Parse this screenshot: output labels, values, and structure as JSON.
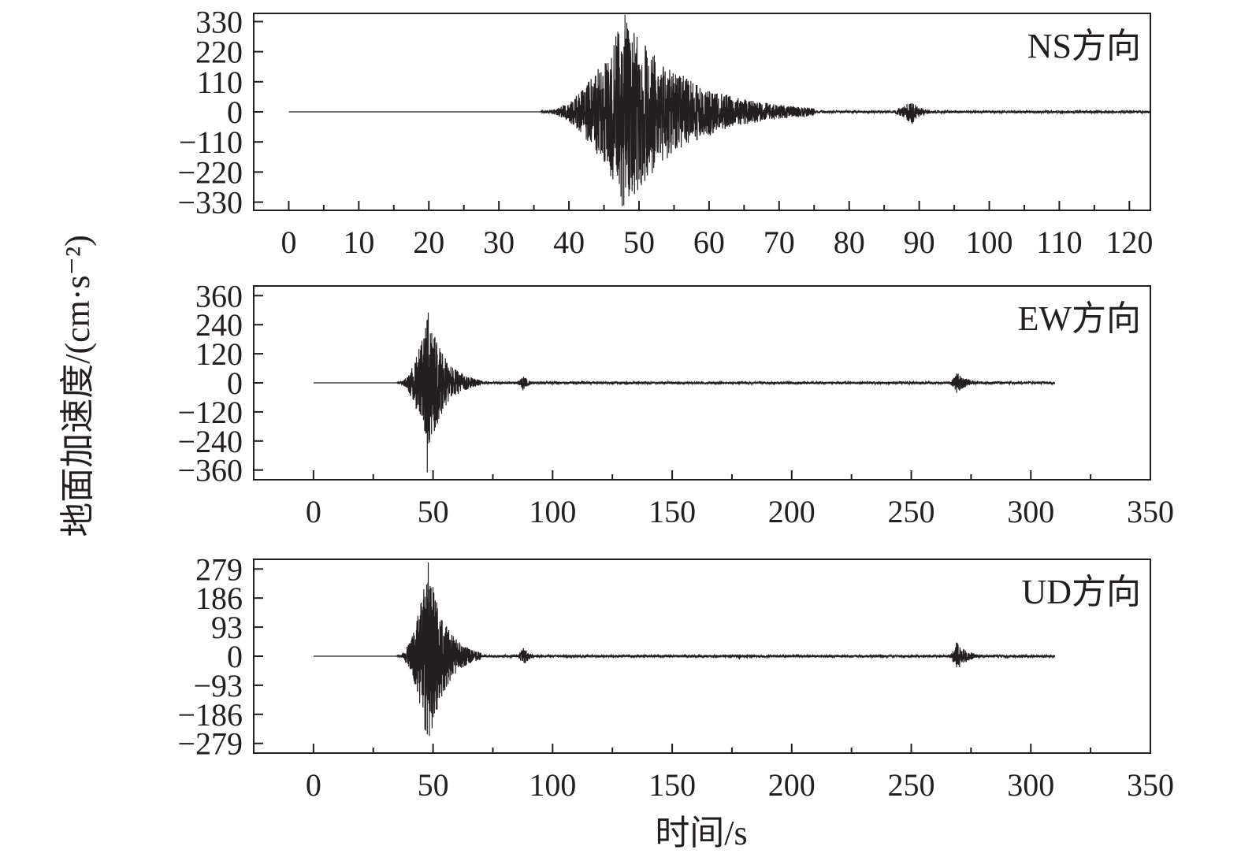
{
  "chart_data": [
    {
      "type": "line",
      "title": "NS方向",
      "xlabel": "",
      "ylabel": "地面加速度/(cm·s⁻²)",
      "xlim": [
        -5,
        123
      ],
      "ylim": [
        -360,
        360
      ],
      "x_ticks": [
        0,
        10,
        20,
        30,
        40,
        50,
        60,
        70,
        80,
        90,
        100,
        110,
        120
      ],
      "x_tick_labels": [
        "0",
        "10",
        "20",
        "30",
        "40",
        "50",
        "60",
        "70",
        "80",
        "90",
        "100",
        "110",
        "120"
      ],
      "y_ticks": [
        330,
        220,
        110,
        0,
        -110,
        -220,
        -330
      ],
      "y_tick_labels": [
        "330",
        "220",
        "110",
        "0",
        "−110",
        "−220",
        "−330"
      ],
      "series": [
        {
          "values_description": "",
          "x_start": 0,
          "x_end": 123,
          "events": [
            {
              "t_start": 36,
              "t_peak": 48,
              "t_end": 75,
              "peak": 355
            },
            {
              "t_start": 85,
              "t_peak": 89,
              "t_end": 93,
              "peak": 45
            }
          ],
          "peak_min": -345
        }
      ]
    },
    {
      "type": "line",
      "title": "EW方向",
      "xlabel": "",
      "ylabel": "地面加速度/(cm·s⁻²)",
      "xlim": [
        -25,
        350
      ],
      "ylim": [
        -400,
        400
      ],
      "x_ticks": [
        0,
        50,
        100,
        150,
        200,
        250,
        300,
        350
      ],
      "x_tick_labels": [
        "0",
        "50",
        "100",
        "150",
        "200",
        "250",
        "300",
        "350"
      ],
      "y_ticks": [
        360,
        240,
        120,
        0,
        -120,
        -240,
        -360
      ],
      "y_tick_labels": [
        "360",
        "240",
        "120",
        "0",
        "−120",
        "−240",
        "−360"
      ],
      "series": [
        {
          "x_start": 0,
          "x_end": 310,
          "events": [
            {
              "t_start": 35,
              "t_peak": 48,
              "t_end": 70,
              "peak": 290
            },
            {
              "t_start": 84,
              "t_peak": 88,
              "t_end": 94,
              "peak": 35
            },
            {
              "t_start": 176,
              "t_peak": 178,
              "t_end": 181,
              "peak": 10
            },
            {
              "t_start": 265,
              "t_peak": 269,
              "t_end": 282,
              "peak": 45
            }
          ],
          "peak_min": -370
        }
      ]
    },
    {
      "type": "line",
      "title": "UD方向",
      "xlabel": "时间/s",
      "ylabel": "地面加速度/(cm·s⁻²)",
      "xlim": [
        -25,
        350
      ],
      "ylim": [
        -310,
        310
      ],
      "x_ticks": [
        0,
        50,
        100,
        150,
        200,
        250,
        300,
        350
      ],
      "x_tick_labels": [
        "0",
        "50",
        "100",
        "150",
        "200",
        "250",
        "300",
        "350"
      ],
      "y_ticks": [
        279,
        186,
        93,
        0,
        -93,
        -186,
        -279
      ],
      "y_tick_labels": [
        "279",
        "186",
        "93",
        "0",
        "−93",
        "−186",
        "−279"
      ],
      "series": [
        {
          "x_start": 0,
          "x_end": 310,
          "events": [
            {
              "t_start": 35,
              "t_peak": 48,
              "t_end": 70,
              "peak": 300
            },
            {
              "t_start": 84,
              "t_peak": 88,
              "t_end": 94,
              "peak": 35
            },
            {
              "t_start": 176,
              "t_peak": 178,
              "t_end": 181,
              "peak": 10
            },
            {
              "t_start": 265,
              "t_peak": 269,
              "t_end": 282,
              "peak": 50
            }
          ],
          "peak_min": -250
        }
      ]
    }
  ],
  "figure": {
    "ylabel": "地面加速度/(cm·s⁻²)",
    "xlabel": "时间/s",
    "trace_color": "#231f20"
  }
}
